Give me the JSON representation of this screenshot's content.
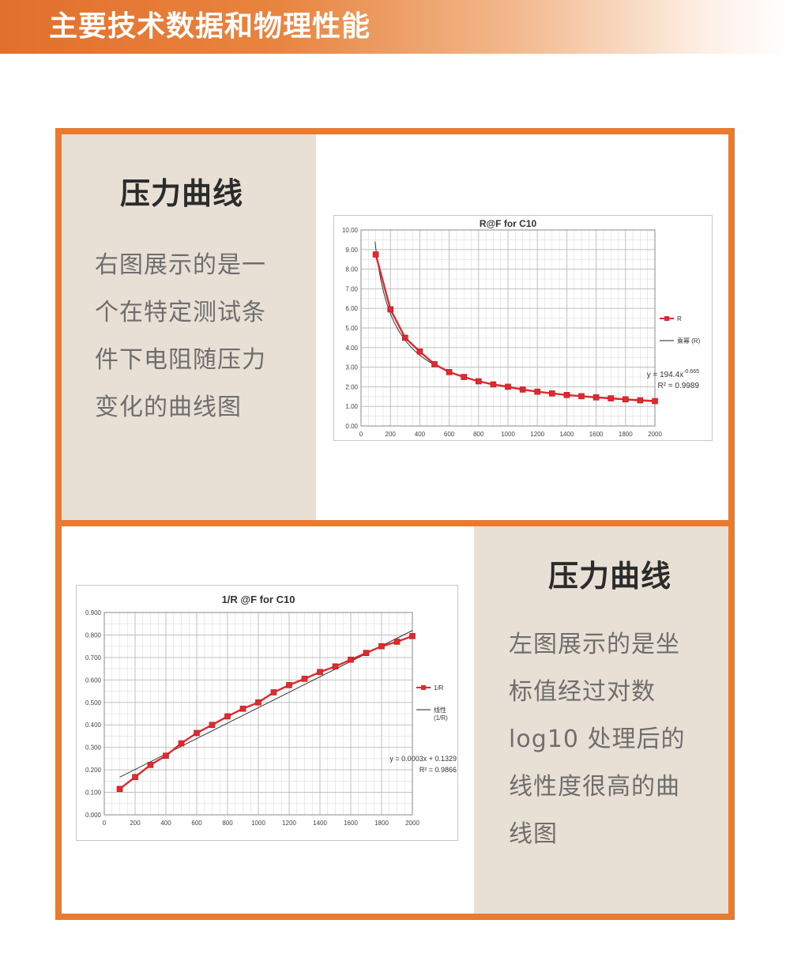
{
  "header": {
    "title": "主要技术数据和物理性能"
  },
  "section1": {
    "heading": "压力曲线",
    "desc_lines": [
      "右图展示的是一",
      "个在特定测试条",
      "件下电阻随压力",
      "变化的曲线图"
    ]
  },
  "section2": {
    "heading": "压力曲线",
    "desc_lines": [
      "左图展示的是坐",
      "标值经过对数",
      " log10 处理后的",
      "线性度很高的曲",
      "线图"
    ]
  },
  "colors": {
    "accent": "#e87a31",
    "series": "#e0282f",
    "beige": "#e8e0d4"
  },
  "chart_data": [
    {
      "type": "line",
      "title": "R@F  for C10",
      "xlabel": "",
      "ylabel": "",
      "xlim": [
        0,
        2000
      ],
      "ylim": [
        0,
        10
      ],
      "xticks": [
        "0",
        "200",
        "400",
        "600",
        "800",
        "1000",
        "1200",
        "1400",
        "1600",
        "1800",
        "2000"
      ],
      "yticks": [
        "0.00",
        "1.00",
        "2.00",
        "3.00",
        "4.00",
        "5.00",
        "6.00",
        "7.00",
        "8.00",
        "9.00",
        "10.00"
      ],
      "x": [
        100,
        200,
        300,
        400,
        500,
        600,
        700,
        800,
        900,
        1000,
        1100,
        1200,
        1300,
        1400,
        1500,
        1600,
        1700,
        1800,
        1900,
        2000
      ],
      "series": [
        {
          "name": "R",
          "values": [
            8.75,
            5.95,
            4.5,
            3.8,
            3.15,
            2.75,
            2.5,
            2.28,
            2.12,
            2.0,
            1.86,
            1.75,
            1.66,
            1.58,
            1.52,
            1.46,
            1.41,
            1.36,
            1.31,
            1.27
          ]
        }
      ],
      "trendline": {
        "name": "乘幂 (R)",
        "type": "power",
        "a": 194.4,
        "b": -0.665
      },
      "equation": "y = 194.4x",
      "equation_exp": "-0.665",
      "r2": "R² = 0.9989",
      "grid": true,
      "legend": "right"
    },
    {
      "type": "line",
      "title": "1/R @F for C10",
      "xlabel": "",
      "ylabel": "",
      "xlim": [
        0,
        2000
      ],
      "ylim": [
        0,
        0.9
      ],
      "xticks": [
        "0",
        "200",
        "400",
        "600",
        "800",
        "1000",
        "1200",
        "1400",
        "1600",
        "1800",
        "2000"
      ],
      "yticks": [
        "0.000",
        "0.100",
        "0.200",
        "0.300",
        "0.400",
        "0.500",
        "0.600",
        "0.700",
        "0.800",
        "0.900"
      ],
      "x": [
        100,
        200,
        300,
        400,
        500,
        600,
        700,
        800,
        900,
        1000,
        1100,
        1200,
        1300,
        1400,
        1500,
        1600,
        1700,
        1800,
        1900,
        2000
      ],
      "series": [
        {
          "name": "1/R",
          "values": [
            0.115,
            0.168,
            0.222,
            0.263,
            0.318,
            0.364,
            0.4,
            0.438,
            0.472,
            0.5,
            0.545,
            0.577,
            0.605,
            0.635,
            0.66,
            0.69,
            0.72,
            0.75,
            0.77,
            0.795
          ]
        }
      ],
      "trendline": {
        "name": "线性\n(1/R)",
        "type": "linear",
        "slope": 0.0003434,
        "intercept": 0.1329
      },
      "equation": "y = 0.0003x + 0.1329",
      "r2": "R² = 0.9866",
      "grid": true,
      "legend": "right"
    }
  ]
}
